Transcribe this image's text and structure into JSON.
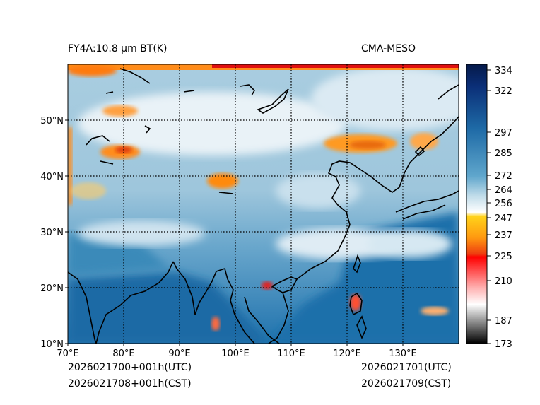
{
  "header": {
    "title_left": "FY4A:10.8 µm BT(K)",
    "title_right": "CMA-MESO"
  },
  "footer": {
    "utc_left": "2026021700+001h(UTC)",
    "cst_left": "2026021708+001h(CST)",
    "utc_right": "2026021701(UTC)",
    "cst_right": "2026021709(CST)"
  },
  "map": {
    "lon_range": [
      70,
      140
    ],
    "lat_range": [
      10,
      60
    ],
    "lon_ticks": [
      {
        "value": 70,
        "label": "70°E"
      },
      {
        "value": 80,
        "label": "80°E"
      },
      {
        "value": 90,
        "label": "90°E"
      },
      {
        "value": 100,
        "label": "100°E"
      },
      {
        "value": 110,
        "label": "110°E"
      },
      {
        "value": 120,
        "label": "120°E"
      },
      {
        "value": 130,
        "label": "130°E"
      }
    ],
    "lat_ticks": [
      {
        "value": 10,
        "label": "10°N"
      },
      {
        "value": 20,
        "label": "20°N"
      },
      {
        "value": 30,
        "label": "30°N"
      },
      {
        "value": 40,
        "label": "40°N"
      },
      {
        "value": 50,
        "label": "50°N"
      }
    ],
    "colors": {
      "ocean_deep": "#1b6ba5",
      "land_cloud": "#9cc4da",
      "high_cloud": "#e8f1f6",
      "cold_top_orange": "#ff8c1a",
      "cold_top_red": "#e01010",
      "coast": "#000000"
    }
  },
  "colorbar": {
    "range": [
      173,
      337
    ],
    "ticks": [
      {
        "value": 334,
        "label": "334"
      },
      {
        "value": 322,
        "label": "322"
      },
      {
        "value": 297,
        "label": "297"
      },
      {
        "value": 285,
        "label": "285"
      },
      {
        "value": 272,
        "label": "272"
      },
      {
        "value": 264,
        "label": "264"
      },
      {
        "value": 256,
        "label": "256"
      },
      {
        "value": 247,
        "label": "247"
      },
      {
        "value": 237,
        "label": "237"
      },
      {
        "value": 225,
        "label": "225"
      },
      {
        "value": 210,
        "label": "210"
      },
      {
        "value": 187,
        "label": "187"
      },
      {
        "value": 173,
        "label": "173"
      }
    ]
  }
}
